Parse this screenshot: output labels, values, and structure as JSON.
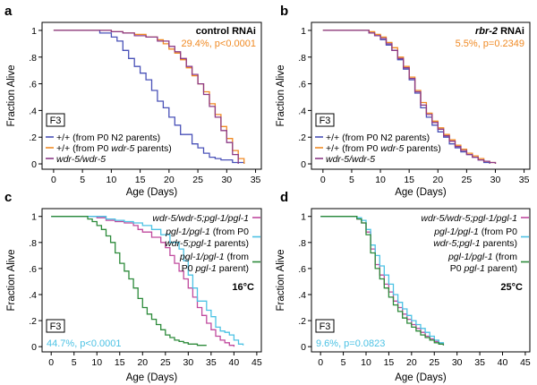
{
  "figure": {
    "colors": {
      "blue": "#4a52b8",
      "orange": "#f08a24",
      "purple": "#8c3a86",
      "cyan": "#4cc2e4",
      "magenta": "#c04a9e",
      "green": "#2c8a3a",
      "axis": "#000000"
    }
  },
  "chart_data": [
    {
      "panel": "a",
      "type": "line",
      "title": "control RNAi",
      "title_italic": false,
      "annotation": "29.4%, p<0.0001",
      "annotation_color": "#f08a24",
      "box_label": "F3",
      "temperature": "",
      "xlabel": "Age (Days)",
      "ylabel": "Fraction Alive",
      "xlim": [
        -2,
        36
      ],
      "ylim": [
        -0.04,
        1.06
      ],
      "xticks": [
        0,
        5,
        10,
        15,
        20,
        25,
        30,
        35
      ],
      "yticks": [
        0,
        0.2,
        0.4,
        0.6,
        0.8,
        1
      ],
      "ytick_labels": [
        "0",
        ".2",
        ".4",
        ".6",
        ".8",
        "1"
      ],
      "legend": [
        {
          "prefix": "+/+ (from P0 N2 parents)",
          "italic": "",
          "suffix": "",
          "color": "#4a52b8"
        },
        {
          "prefix": "+/+ (from P0 ",
          "italic": "wdr-5",
          "suffix": " parents)",
          "color": "#f08a24"
        },
        {
          "prefix": "",
          "italic": "wdr-5/wdr-5",
          "suffix": "",
          "color": "#8c3a86"
        }
      ],
      "series": [
        {
          "name": "+/+ (from P0 N2 parents)",
          "color": "#4a52b8",
          "x": [
            0,
            6,
            8,
            10,
            11,
            12,
            13,
            14,
            15,
            16,
            17,
            18,
            19,
            20,
            21,
            22,
            24,
            25,
            26,
            27,
            28,
            29,
            31,
            33
          ],
          "y": [
            1,
            1,
            0.98,
            0.95,
            0.92,
            0.85,
            0.79,
            0.73,
            0.68,
            0.63,
            0.55,
            0.47,
            0.42,
            0.35,
            0.29,
            0.22,
            0.15,
            0.12,
            0.08,
            0.05,
            0.04,
            0.03,
            0.01,
            0
          ]
        },
        {
          "name": "+/+ (from P0 wdr-5 parents)",
          "color": "#f08a24",
          "x": [
            0,
            8,
            10,
            12,
            14,
            16,
            18,
            19,
            20,
            21,
            22,
            23,
            24,
            25,
            26,
            27,
            28,
            29,
            30,
            31,
            32,
            33
          ],
          "y": [
            1,
            1,
            0.99,
            0.98,
            0.97,
            0.95,
            0.93,
            0.9,
            0.86,
            0.83,
            0.78,
            0.72,
            0.66,
            0.6,
            0.54,
            0.45,
            0.37,
            0.28,
            0.19,
            0.1,
            0.04,
            0
          ]
        },
        {
          "name": "wdr-5/wdr-5",
          "color": "#8c3a86",
          "x": [
            0,
            8,
            10,
            12,
            14,
            16,
            18,
            20,
            21,
            22,
            23,
            24,
            25,
            26,
            27,
            28,
            29,
            30,
            31,
            32
          ],
          "y": [
            1,
            1,
            0.99,
            0.98,
            0.96,
            0.95,
            0.92,
            0.88,
            0.84,
            0.79,
            0.73,
            0.67,
            0.6,
            0.52,
            0.43,
            0.35,
            0.25,
            0.16,
            0.07,
            0
          ]
        }
      ]
    },
    {
      "panel": "b",
      "type": "line",
      "title": "rbr-2 RNAi",
      "title_italic": true,
      "annotation": "5.5%, p=0.2349",
      "annotation_color": "#f08a24",
      "box_label": "F3",
      "temperature": "",
      "xlabel": "Age (Days)",
      "ylabel": "Fraction Alive",
      "xlim": [
        -2,
        36
      ],
      "ylim": [
        -0.04,
        1.06
      ],
      "xticks": [
        0,
        5,
        10,
        15,
        20,
        25,
        30,
        35
      ],
      "yticks": [
        0,
        0.2,
        0.4,
        0.6,
        0.8,
        1
      ],
      "ytick_labels": [
        "0",
        ".2",
        ".4",
        ".6",
        ".8",
        "1"
      ],
      "legend": [
        {
          "prefix": "+/+ (from P0 N2 parents)",
          "italic": "",
          "suffix": "",
          "color": "#4a52b8"
        },
        {
          "prefix": "+/+ (from P0 ",
          "italic": "wdr-5",
          "suffix": " parents)",
          "color": "#f08a24"
        },
        {
          "prefix": "",
          "italic": "wdr-5/wdr-5",
          "suffix": "",
          "color": "#8c3a86"
        }
      ],
      "series": [
        {
          "name": "+/+ (from P0 N2 parents)",
          "color": "#4a52b8",
          "x": [
            0,
            6,
            8,
            9,
            10,
            11,
            12,
            13,
            14,
            15,
            16,
            17,
            18,
            19,
            20,
            21,
            22,
            23,
            24,
            25,
            26,
            27,
            28,
            29
          ],
          "y": [
            1,
            1,
            0.98,
            0.96,
            0.93,
            0.89,
            0.85,
            0.78,
            0.71,
            0.63,
            0.53,
            0.42,
            0.35,
            0.29,
            0.24,
            0.2,
            0.15,
            0.12,
            0.09,
            0.07,
            0.05,
            0.03,
            0.01,
            0
          ]
        },
        {
          "name": "+/+ (from P0 wdr-5 parents)",
          "color": "#f08a24",
          "x": [
            0,
            6,
            8,
            9,
            10,
            11,
            12,
            13,
            14,
            15,
            16,
            17,
            18,
            19,
            20,
            21,
            22,
            23,
            24,
            25,
            26,
            27,
            28,
            29,
            30
          ],
          "y": [
            1,
            1,
            0.99,
            0.97,
            0.95,
            0.91,
            0.87,
            0.8,
            0.73,
            0.65,
            0.55,
            0.46,
            0.38,
            0.32,
            0.27,
            0.22,
            0.18,
            0.14,
            0.11,
            0.08,
            0.06,
            0.04,
            0.02,
            0.01,
            0
          ]
        },
        {
          "name": "wdr-5/wdr-5",
          "color": "#8c3a86",
          "x": [
            0,
            6,
            8,
            9,
            10,
            11,
            12,
            13,
            14,
            15,
            16,
            17,
            18,
            19,
            20,
            21,
            22,
            23,
            24,
            25,
            26,
            27,
            28,
            29,
            30
          ],
          "y": [
            1,
            1,
            0.98,
            0.96,
            0.94,
            0.9,
            0.85,
            0.79,
            0.72,
            0.64,
            0.54,
            0.44,
            0.37,
            0.31,
            0.26,
            0.21,
            0.17,
            0.13,
            0.1,
            0.07,
            0.05,
            0.03,
            0.02,
            0.01,
            0
          ]
        }
      ]
    },
    {
      "panel": "c",
      "type": "line",
      "title": "",
      "title_italic": false,
      "annotation": "44.7%, p<0.0001",
      "annotation_color": "#4cc2e4",
      "box_label": "F3",
      "temperature": "16°C",
      "xlabel": "Age (Days)",
      "ylabel": "Fraction Alive",
      "xlim": [
        -2,
        46
      ],
      "ylim": [
        -0.04,
        1.06
      ],
      "xticks": [
        0,
        5,
        10,
        15,
        20,
        25,
        30,
        35,
        40,
        45
      ],
      "yticks": [
        0,
        0.2,
        0.4,
        0.6,
        0.8,
        1
      ],
      "ytick_labels": [
        "0",
        ".2",
        ".4",
        ".6",
        ".8",
        "1"
      ],
      "legend": [
        {
          "lines": [
            [
              {
                "t": "wdr-5/wdr-5;pgl-1/pgl-1",
                "i": true
              }
            ]
          ],
          "color": "#c04a9e"
        },
        {
          "lines": [
            [
              {
                "t": "pgl-1/pgl-1",
                "i": true
              },
              {
                "t": " (from P0",
                "i": false
              }
            ],
            [
              {
                "t": "wdr-5;pgl-1",
                "i": true
              },
              {
                "t": " parents)",
                "i": false
              }
            ]
          ],
          "color": "#4cc2e4"
        },
        {
          "lines": [
            [
              {
                "t": "pgl-1/pgl-1",
                "i": true
              },
              {
                "t": " (from",
                "i": false
              }
            ],
            [
              {
                "t": "P0 ",
                "i": false
              },
              {
                "t": "pgl-1",
                "i": true
              },
              {
                "t": " parent)",
                "i": false
              }
            ]
          ],
          "color": "#2c8a3a"
        }
      ],
      "series": [
        {
          "name": "wdr-5/wdr-5;pgl-1/pgl-1",
          "color": "#c04a9e",
          "x": [
            0,
            8,
            10,
            12,
            14,
            16,
            18,
            19,
            20,
            22,
            24,
            25,
            26,
            27,
            28,
            29,
            30,
            31,
            32,
            33,
            34,
            35,
            36,
            37,
            38,
            39,
            40
          ],
          "y": [
            1,
            1,
            0.99,
            0.97,
            0.96,
            0.95,
            0.93,
            0.9,
            0.88,
            0.84,
            0.8,
            0.76,
            0.7,
            0.64,
            0.58,
            0.52,
            0.45,
            0.38,
            0.3,
            0.24,
            0.18,
            0.13,
            0.08,
            0.05,
            0.03,
            0.01,
            0
          ]
        },
        {
          "name": "pgl-1/pgl-1 (from P0 wdr-5;pgl-1 parents)",
          "color": "#4cc2e4",
          "x": [
            0,
            10,
            12,
            14,
            16,
            18,
            20,
            22,
            24,
            26,
            28,
            29,
            30,
            31,
            32,
            34,
            35,
            36,
            37,
            38,
            39,
            40,
            41,
            42
          ],
          "y": [
            1,
            1,
            0.98,
            0.97,
            0.96,
            0.95,
            0.93,
            0.9,
            0.86,
            0.8,
            0.75,
            0.66,
            0.55,
            0.45,
            0.35,
            0.28,
            0.23,
            0.15,
            0.12,
            0.11,
            0.09,
            0.05,
            0.02,
            0.01
          ]
        },
        {
          "name": "pgl-1/pgl-1 (from P0 pgl-1 parent)",
          "color": "#2c8a3a",
          "x": [
            0,
            8,
            9,
            10,
            11,
            12,
            13,
            14,
            15,
            16,
            17,
            18,
            19,
            20,
            21,
            22,
            23,
            24,
            25,
            26,
            27,
            28,
            29,
            30,
            31,
            32,
            33,
            34
          ],
          "y": [
            1,
            0.98,
            0.96,
            0.93,
            0.9,
            0.85,
            0.8,
            0.72,
            0.64,
            0.58,
            0.52,
            0.45,
            0.37,
            0.3,
            0.25,
            0.21,
            0.17,
            0.13,
            0.09,
            0.07,
            0.05,
            0.04,
            0.03,
            0.02,
            0.02,
            0.01,
            0.01,
            0.01
          ]
        }
      ]
    },
    {
      "panel": "d",
      "type": "line",
      "title": "",
      "title_italic": false,
      "annotation": "9.6%, p=0.0823",
      "annotation_color": "#4cc2e4",
      "box_label": "F3",
      "temperature": "25°C",
      "xlabel": "Age (Days)",
      "ylabel": "Fraction Alive",
      "xlim": [
        -2,
        46
      ],
      "ylim": [
        -0.04,
        1.06
      ],
      "xticks": [
        0,
        5,
        10,
        15,
        20,
        25,
        30,
        35,
        40,
        45
      ],
      "yticks": [
        0,
        0.2,
        0.4,
        0.6,
        0.8,
        1
      ],
      "ytick_labels": [
        "0",
        ".2",
        ".4",
        ".6",
        ".8",
        "1"
      ],
      "legend": [
        {
          "lines": [
            [
              {
                "t": "wdr-5/wdr-5;pgl-1/pgl-1",
                "i": true
              }
            ]
          ],
          "color": "#c04a9e"
        },
        {
          "lines": [
            [
              {
                "t": "pgl-1/pgl-1",
                "i": true
              },
              {
                "t": " (from P0",
                "i": false
              }
            ],
            [
              {
                "t": "wdr-5;pgl-1",
                "i": true
              },
              {
                "t": " parents)",
                "i": false
              }
            ]
          ],
          "color": "#4cc2e4"
        },
        {
          "lines": [
            [
              {
                "t": "pgl-1/pgl-1",
                "i": true
              },
              {
                "t": " (from",
                "i": false
              }
            ],
            [
              {
                "t": "P0 ",
                "i": false
              },
              {
                "t": "pgl-1",
                "i": true
              },
              {
                "t": " parent)",
                "i": false
              }
            ]
          ],
          "color": "#2c8a3a"
        }
      ],
      "series": [
        {
          "name": "wdr-5/wdr-5;pgl-1/pgl-1",
          "color": "#c04a9e",
          "x": [
            0,
            7,
            8,
            9,
            10,
            11,
            12,
            13,
            14,
            15,
            16,
            17,
            18,
            19,
            20,
            21,
            22,
            23,
            24,
            25,
            26,
            27
          ],
          "y": [
            1,
            1,
            0.98,
            0.95,
            0.88,
            0.75,
            0.63,
            0.55,
            0.48,
            0.42,
            0.35,
            0.3,
            0.25,
            0.21,
            0.17,
            0.14,
            0.11,
            0.08,
            0.06,
            0.04,
            0.02,
            0.01
          ]
        },
        {
          "name": "pgl-1/pgl-1 (from P0 wdr-5;pgl-1 parents)",
          "color": "#4cc2e4",
          "x": [
            0,
            7,
            8,
            9,
            10,
            11,
            12,
            13,
            14,
            15,
            16,
            17,
            18,
            19,
            20,
            21,
            22,
            23,
            24,
            25,
            26,
            27
          ],
          "y": [
            1,
            1,
            0.99,
            0.97,
            0.9,
            0.78,
            0.7,
            0.62,
            0.55,
            0.48,
            0.4,
            0.34,
            0.29,
            0.24,
            0.2,
            0.17,
            0.14,
            0.11,
            0.08,
            0.05,
            0.03,
            0.02
          ]
        },
        {
          "name": "pgl-1/pgl-1 (from P0 pgl-1 parent)",
          "color": "#2c8a3a",
          "x": [
            0,
            7,
            8,
            9,
            10,
            11,
            12,
            13,
            14,
            15,
            16,
            17,
            18,
            19,
            20,
            21,
            22,
            23,
            24,
            25,
            26,
            27
          ],
          "y": [
            1,
            1,
            0.98,
            0.95,
            0.86,
            0.72,
            0.6,
            0.52,
            0.45,
            0.38,
            0.32,
            0.27,
            0.22,
            0.18,
            0.15,
            0.12,
            0.09,
            0.07,
            0.05,
            0.03,
            0.02,
            0.01
          ]
        }
      ]
    }
  ]
}
